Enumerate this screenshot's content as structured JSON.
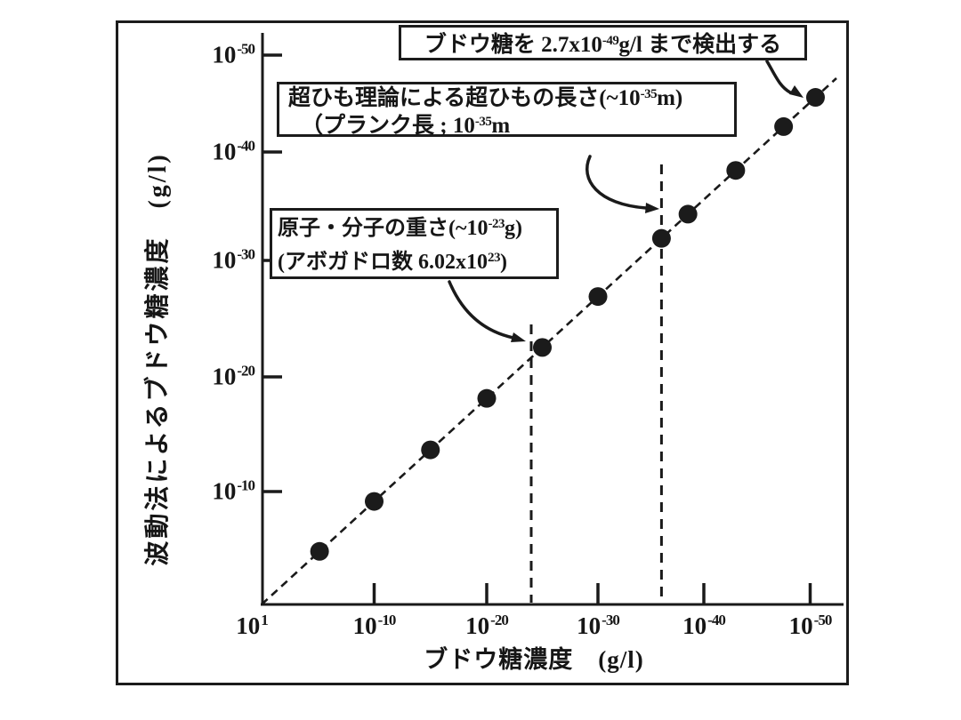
{
  "figure": {
    "background": "#ffffff",
    "ink": "#1a1a1a",
    "description": "scanned hand-drawn log-log scatter plot with black frame"
  },
  "chart_data": {
    "type": "scatter",
    "title": "",
    "xlabel": "ブドウ糖濃度　(g/l)",
    "ylabel": "波動法によるブドウ糖濃度　(g/l)",
    "x_scale": "log",
    "y_scale": "log",
    "x_range_exponents": [
      1,
      -50
    ],
    "y_range_exponents": [
      1,
      -50
    ],
    "grid": false,
    "x_ticks": [
      {
        "base": "10",
        "exp": "1",
        "e": 1,
        "tick": false
      },
      {
        "base": "10",
        "exp": "-10",
        "e": -10,
        "tick": true
      },
      {
        "base": "10",
        "exp": "-20",
        "e": -20,
        "tick": true
      },
      {
        "base": "10",
        "exp": "-30",
        "e": -30,
        "tick": true
      },
      {
        "base": "10",
        "exp": "-40",
        "e": -40,
        "tick": true
      },
      {
        "base": "10",
        "exp": "-50",
        "e": -50,
        "tick": true
      }
    ],
    "y_ticks": [
      {
        "base": "10",
        "exp": "-50",
        "e": -50
      },
      {
        "base": "10",
        "exp": "-40",
        "e": -40
      },
      {
        "base": "10",
        "exp": "-30",
        "e": -30
      },
      {
        "base": "10",
        "exp": "-20",
        "e": -20
      },
      {
        "base": "10",
        "exp": "-10",
        "e": -10
      }
    ],
    "identity_line": {
      "style": "dashed",
      "relation": "y = x"
    },
    "points_exponents_as_drawn": [
      -5,
      -10,
      -15,
      -20,
      -25,
      -30,
      -36,
      -38.5,
      -43,
      -47.5,
      -50.5
    ],
    "points_note": "black dots lie on the dashed identity line; topmost dot is the detection limit",
    "detection_limit_label": "2.7x10-49 g/l",
    "vlines": [
      {
        "e": -24,
        "style": "dashed",
        "meaning": "原子・分子の重さ(~10-23g)"
      },
      {
        "e": -36,
        "style": "dashed",
        "meaning": "超ひも理論による超ひもの長さ(~10-35m)"
      }
    ]
  },
  "annotations": [
    {
      "id": "detection-limit",
      "lines": [
        [
          {
            "t": "ブドウ糖を 2.7x10"
          },
          {
            "sup": "-49"
          },
          {
            "t": "g/l まで検出する"
          }
        ]
      ]
    },
    {
      "id": "superstring",
      "lines": [
        [
          {
            "t": "超ひも理論による超ひもの長さ(~10"
          },
          {
            "sup": "-35"
          },
          {
            "t": "m)"
          }
        ],
        [
          {
            "t": "（プランク長 ; 10"
          },
          {
            "sup": "-35"
          },
          {
            "t": "m"
          }
        ]
      ]
    },
    {
      "id": "molecule",
      "lines": [
        [
          {
            "t": "原子・分子の重さ(~10"
          },
          {
            "sup": "-23"
          },
          {
            "t": "g)"
          }
        ],
        [
          {
            "t": "(アボガドロ数 6.02x10"
          },
          {
            "sup": "23"
          },
          {
            "t": ")"
          }
        ]
      ]
    }
  ]
}
